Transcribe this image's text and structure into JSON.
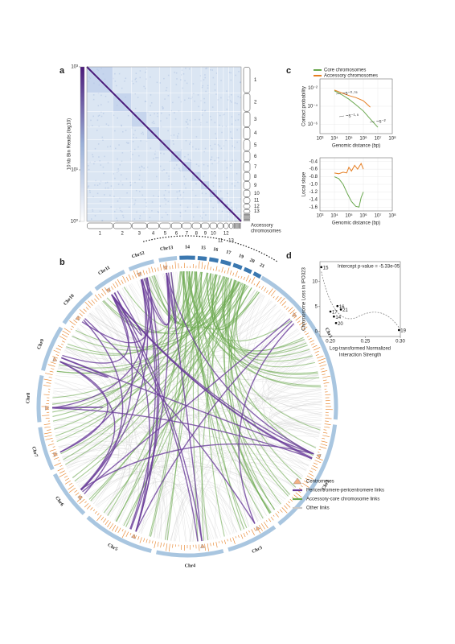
{
  "chart_data": [
    {
      "type": "heatmap",
      "panel": "a",
      "colorbar_label": "10 kb Bin Reads (log10)",
      "colorbar_lim": [
        1,
        1000
      ],
      "colorbar_scale": "log",
      "colorbar_ticks": [
        {
          "value": 1000,
          "label": "10³"
        },
        {
          "value": 10,
          "label": "10¹"
        },
        {
          "value": 1,
          "label": "10⁰"
        }
      ],
      "chromosomes": [
        "1",
        "2",
        "3",
        "4",
        "5",
        "6",
        "7",
        "8",
        "9",
        "10",
        "11",
        "12",
        "13"
      ],
      "accessory_label": [
        "Accessory",
        "chromosomes"
      ]
    },
    {
      "type": "chord",
      "panel": "b",
      "segments": [
        "Chr1",
        "Chr2",
        "Chr3",
        "Chr4",
        "Chr5",
        "Chr6",
        "Chr7",
        "Chr8",
        "Chr9",
        "Chr10",
        "Chr11",
        "Chr12",
        "Chr13",
        "14",
        "15",
        "16",
        "17",
        "19",
        "20",
        "21"
      ],
      "legend": [
        {
          "name": "Centromeres",
          "color": "#f4b183"
        },
        {
          "name": "Pericentromere-pericentromere links",
          "color": "#6a3d9a"
        },
        {
          "name": "Accessory-core chromosome links",
          "color": "#6aa84f"
        },
        {
          "name": "Other links",
          "color": "#c8c8c8"
        }
      ]
    },
    {
      "type": "line",
      "panel": "c",
      "x_label": "Genomic distance (bp)",
      "y_label": "Contact probability",
      "xscale": "log",
      "yscale": "log",
      "grid": true,
      "xlim": [
        1000,
        100000000
      ],
      "ylim": [
        1e-07,
        0.1
      ],
      "xticks": [
        {
          "value": 1000,
          "label": "10³"
        },
        {
          "value": 10000,
          "label": "10⁴"
        },
        {
          "value": 100000,
          "label": "10⁵"
        },
        {
          "value": 1000000,
          "label": "10⁶"
        },
        {
          "value": 10000000,
          "label": "10⁷"
        },
        {
          "value": 100000000,
          "label": "10⁸"
        }
      ],
      "yticks": [
        {
          "value": 0.01,
          "label": "10⁻²"
        },
        {
          "value": 0.0001,
          "label": "10⁻⁴"
        },
        {
          "value": 1e-06,
          "label": "10⁻⁶"
        }
      ],
      "annotations": [
        "~s⁻⁰·⁷⁵",
        "~s⁻¹·⁵",
        "~s⁻²"
      ],
      "series": [
        {
          "name": "Core chromosomes",
          "color": "#6aa84f",
          "x": [
            10000,
            30000,
            100000,
            300000,
            1000000,
            3000000,
            10000000
          ],
          "values": [
            0.005,
            0.002,
            0.0006,
            0.00015,
            3e-05,
            4e-06,
            5e-07
          ]
        },
        {
          "name": "Accessory chromosomes",
          "color": "#e67e22",
          "x": [
            10000,
            30000,
            100000,
            300000,
            1000000,
            3000000
          ],
          "values": [
            0.006,
            0.003,
            0.0015,
            0.0009,
            0.0004,
            8e-05
          ]
        }
      ]
    },
    {
      "type": "line",
      "x_label": "Genomic distance (bp)",
      "y_label": "Local slope",
      "xscale": "log",
      "yscale": "linear",
      "grid": true,
      "xlim": [
        1000,
        100000000
      ],
      "ylim": [
        -1.7,
        -0.3
      ],
      "xticks": [
        {
          "value": 1000,
          "label": "10³"
        },
        {
          "value": 10000,
          "label": "10⁴"
        },
        {
          "value": 100000,
          "label": "10⁵"
        },
        {
          "value": 1000000,
          "label": "10⁶"
        },
        {
          "value": 10000000,
          "label": "10⁷"
        },
        {
          "value": 100000000,
          "label": "10⁸"
        }
      ],
      "yticks": [
        -0.4,
        -0.6,
        -0.8,
        {
          "value": -1,
          "label": "-1.0"
        },
        -1.2,
        -1.4,
        -1.6
      ],
      "series": [
        {
          "color": "#6aa84f",
          "x": [
            10000,
            20000,
            40000,
            80000,
            150000,
            300000,
            500000,
            700000,
            1000000
          ],
          "values": [
            -0.8,
            -0.85,
            -1.0,
            -1.25,
            -1.45,
            -1.58,
            -1.6,
            -1.35,
            -1.2
          ]
        },
        {
          "color": "#e67e22",
          "x": [
            10000,
            20000,
            40000,
            70000,
            100000,
            150000,
            250000,
            400000,
            700000,
            1000000
          ],
          "values": [
            -0.7,
            -0.72,
            -0.68,
            -0.7,
            -0.55,
            -0.65,
            -0.5,
            -0.6,
            -0.45,
            -0.6
          ]
        }
      ]
    },
    {
      "type": "scatter",
      "panel": "d",
      "x_label": [
        "Log-transformed Normalized",
        "Interaction Strength"
      ],
      "y_label": "Chromosome Loss in IPO323",
      "annotation": "Intercept p-value = -5.33e-05",
      "xlim": [
        0.185,
        0.3
      ],
      "ylim": [
        -1,
        14
      ],
      "xticks": [
        {
          "value": 0.2,
          "label": "0.20"
        },
        {
          "value": 0.25,
          "label": "0.25"
        },
        {
          "value": 0.3,
          "label": "0.30"
        }
      ],
      "yticks": [
        0,
        5,
        10
      ],
      "color": "#000000",
      "categories": [
        "15",
        "16",
        "17",
        "14",
        "21",
        "20",
        "19"
      ],
      "x": [
        0.187,
        0.21,
        0.2,
        0.205,
        0.215,
        0.208,
        0.298
      ],
      "values": [
        12.9,
        5.1,
        4,
        3,
        4.4,
        1.7,
        0.3
      ]
    }
  ]
}
